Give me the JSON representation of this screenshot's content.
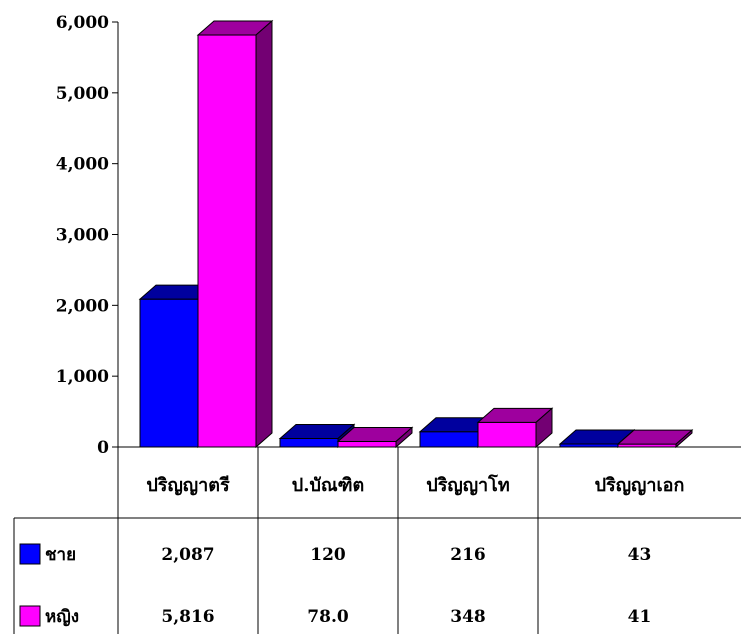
{
  "chart_data": {
    "type": "bar",
    "style": "3d-clustered-column-with-data-table",
    "categories": [
      "ปริญญาตรี",
      "ป.บัณฑิต",
      "ปริญญาโท",
      "ปริญญาเอก"
    ],
    "series": [
      {
        "name": "ชาย",
        "values": [
          2087,
          120,
          216,
          43
        ],
        "labels": [
          "2,087",
          "120",
          "216",
          "43"
        ],
        "color": "#0000ff"
      },
      {
        "name": "หญิง",
        "values": [
          5816,
          78,
          348,
          41
        ],
        "labels": [
          "5,816",
          "78.0",
          "348",
          "41"
        ],
        "color": "#ff00ff"
      }
    ],
    "ylim": [
      0,
      6000
    ],
    "yticks": [
      "0",
      "1,000",
      "2,000",
      "3,000",
      "4,000",
      "5,000",
      "6,000"
    ],
    "ytick_values": [
      0,
      1000,
      2000,
      3000,
      4000,
      5000,
      6000
    ],
    "grid": false,
    "legend": "in-data-table-left"
  }
}
